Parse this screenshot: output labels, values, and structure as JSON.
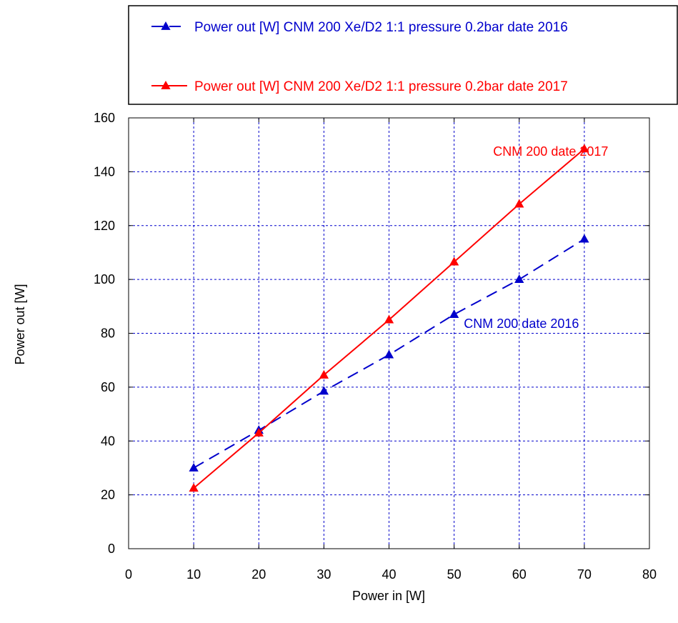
{
  "chart_data": {
    "type": "line",
    "title": "",
    "xlabel": "Power in [W]",
    "ylabel": "Power out [W]",
    "xlim": [
      0,
      80
    ],
    "ylim": [
      0,
      160
    ],
    "xticks": [
      "0",
      "10",
      "20",
      "30",
      "40",
      "50",
      "60",
      "70",
      "80"
    ],
    "yticks": [
      "0",
      "20",
      "40",
      "60",
      "80",
      "100",
      "120",
      "140",
      "160"
    ],
    "grid": true,
    "legend_position": "top",
    "series": [
      {
        "name": "Power out [W] CNM 200 Xe/D2 1:1 pressure 0.2bar date 2016",
        "color": "#0000cc",
        "line_style": "dashed",
        "marker": "triangle",
        "x": [
          10,
          20,
          30,
          40,
          50,
          60,
          70
        ],
        "y": [
          30,
          44,
          58.5,
          72,
          87,
          100,
          115
        ]
      },
      {
        "name": "Power out [W] CNM 200 Xe/D2 1:1 pressure 0.2bar date 2017",
        "color": "#ff0000",
        "line_style": "solid",
        "marker": "triangle",
        "x": [
          10,
          20,
          30,
          40,
          50,
          60,
          70
        ],
        "y": [
          22.5,
          43,
          64.5,
          85,
          106.5,
          128,
          148.5
        ]
      }
    ],
    "annotations": [
      {
        "text": "CNM 200 date 2017",
        "color": "#ff0000",
        "x": 56,
        "y": 146
      },
      {
        "text": "CNM 200 date 2016",
        "color": "#0000cc",
        "x": 51.5,
        "y": 82
      }
    ]
  }
}
